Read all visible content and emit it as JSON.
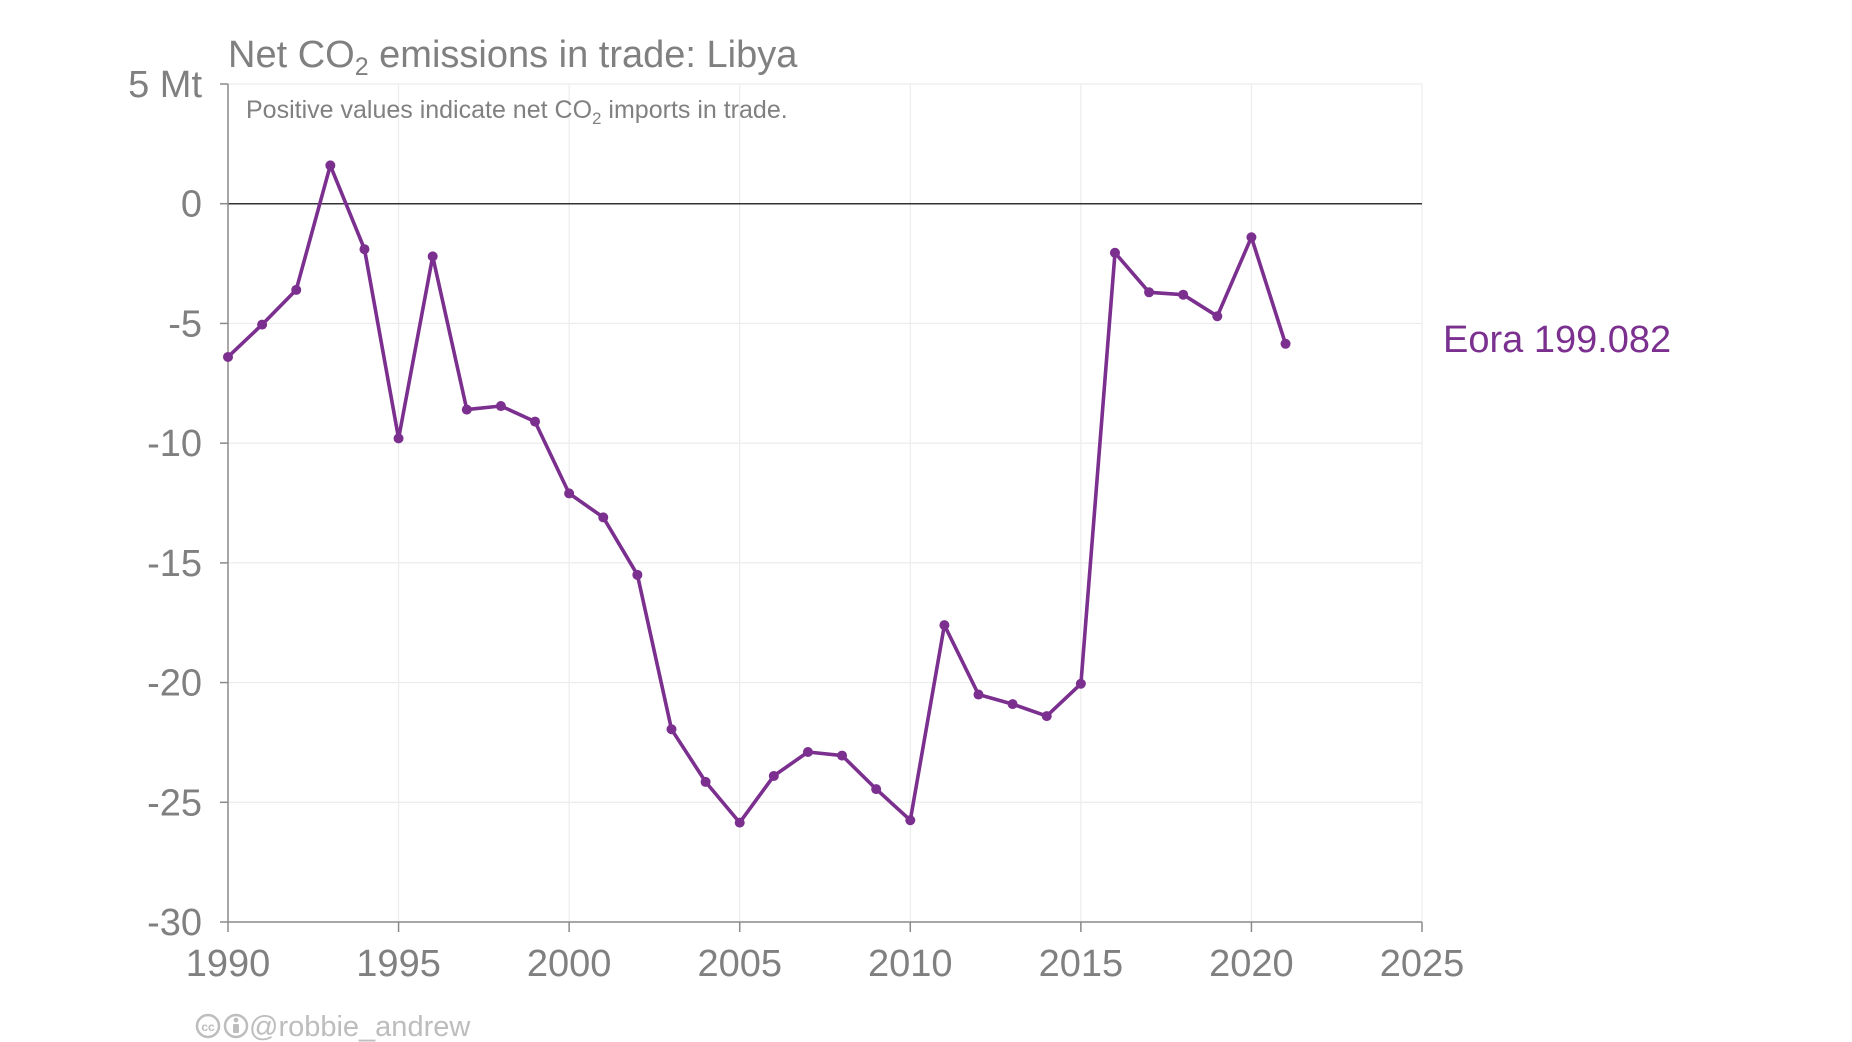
{
  "chart_data": {
    "type": "line",
    "title": {
      "prefix": "Net CO",
      "sub": "2",
      "suffix": " emissions in trade: Libya"
    },
    "subtitle": {
      "prefix": "Positive values indicate net CO",
      "sub": "2",
      "suffix": " imports in trade."
    },
    "y_unit_label": "5 Mt",
    "ylim": [
      -30,
      5
    ],
    "xlim": [
      1990,
      2025
    ],
    "y_ticks": [
      {
        "value": 5,
        "label": "5 Mt"
      },
      {
        "value": 0,
        "label": "0"
      },
      {
        "value": -5,
        "label": "-5"
      },
      {
        "value": -10,
        "label": "-10"
      },
      {
        "value": -15,
        "label": "-15"
      },
      {
        "value": -20,
        "label": "-20"
      },
      {
        "value": -25,
        "label": "-25"
      },
      {
        "value": -30,
        "label": "-30"
      }
    ],
    "x_ticks": [
      {
        "value": 1990,
        "label": "1990"
      },
      {
        "value": 1995,
        "label": "1995"
      },
      {
        "value": 2000,
        "label": "2000"
      },
      {
        "value": 2005,
        "label": "2005"
      },
      {
        "value": 2010,
        "label": "2010"
      },
      {
        "value": 2015,
        "label": "2015"
      },
      {
        "value": 2020,
        "label": "2020"
      },
      {
        "value": 2025,
        "label": "2025"
      }
    ],
    "grid": true,
    "series": [
      {
        "name": "Eora 199.082",
        "color": "#7b2f8e",
        "x": [
          1990,
          1991,
          1992,
          1993,
          1994,
          1995,
          1996,
          1997,
          1998,
          1999,
          2000,
          2001,
          2002,
          2003,
          2004,
          2005,
          2006,
          2007,
          2008,
          2009,
          2010,
          2011,
          2012,
          2013,
          2014,
          2015,
          2016,
          2017,
          2018,
          2019,
          2020,
          2021
        ],
        "y": [
          -6.4,
          -5.05,
          -3.6,
          1.6,
          -1.9,
          -9.8,
          -2.2,
          -8.6,
          -8.45,
          -9.1,
          -12.1,
          -13.1,
          -15.5,
          -21.95,
          -24.15,
          -25.85,
          -23.9,
          -22.9,
          -23.05,
          -24.45,
          -25.75,
          -17.6,
          -20.5,
          -20.9,
          -21.4,
          -20.05,
          -2.05,
          -3.7,
          -3.8,
          -4.7,
          -1.4,
          -5.85
        ]
      }
    ]
  },
  "credit": {
    "icons": [
      "cc-icon",
      "by-icon"
    ],
    "text": "@robbie_andrew"
  }
}
